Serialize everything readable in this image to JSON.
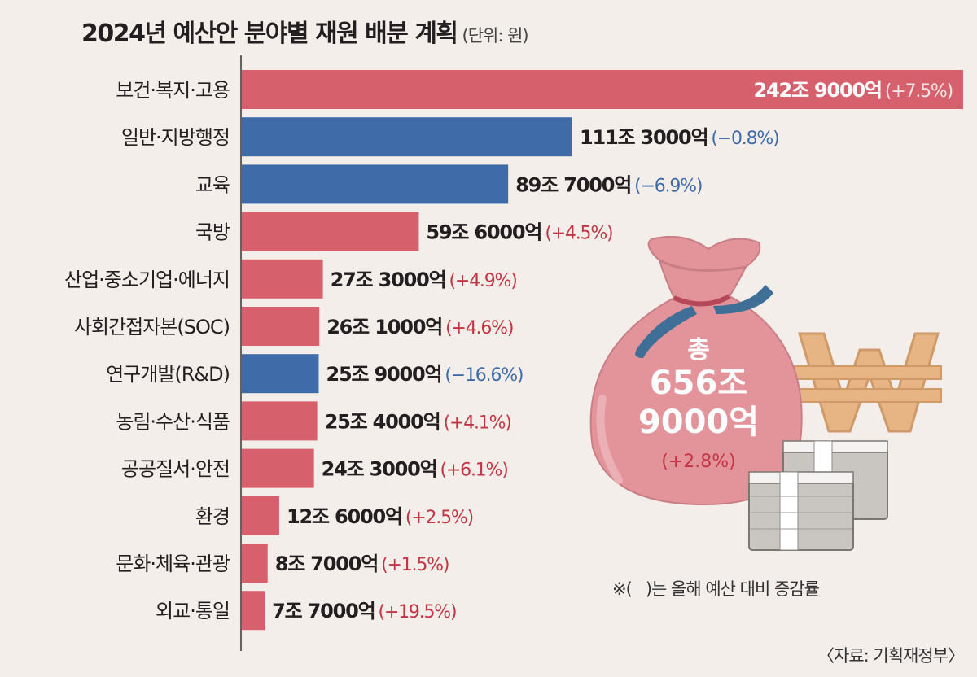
{
  "title": "2024년 예산안 분야별 재원 배분 계획",
  "unit": "(단위: 원)",
  "note": "※(   )는 올해 예산 대비 증감률",
  "source": "〈자료: 기획재정부〉",
  "total": {
    "label": "총",
    "line1": "656조",
    "line2": "9000억",
    "change": "(+2.8%)"
  },
  "colors": {
    "positive": "#d7606d",
    "negative": "#3f6ca8",
    "positive_text": "#c43544",
    "negative_text": "#3f6ca8",
    "top_value_text": "#ffffff"
  },
  "chart_data": {
    "type": "bar",
    "orientation": "horizontal",
    "title": "2024년 예산안 분야별 재원 배분 계획",
    "unit": "원",
    "categories": [
      "보건·복지·고용",
      "일반·지방행정",
      "교육",
      "국방",
      "산업·중소기업·에너지",
      "사회간접자본(SOC)",
      "연구개발(R&D)",
      "농림·수산·식품",
      "공공질서·안전",
      "환경",
      "문화·체육·관광",
      "외교·통일"
    ],
    "values_trillion_won": [
      242.9,
      111.3,
      89.7,
      59.6,
      27.3,
      26.1,
      25.9,
      25.4,
      24.3,
      12.6,
      8.7,
      7.7
    ],
    "value_labels": [
      "242조 9000억",
      "111조 3000억",
      "89조 7000억",
      "59조 6000억",
      "27조 3000억",
      "26조 1000억",
      "25조 9000억",
      "25조 4000억",
      "24조 3000억",
      "12조 6000억",
      "8조 7000억",
      "7조 7000억"
    ],
    "change_percent": [
      7.5,
      -0.8,
      -6.9,
      4.5,
      4.9,
      4.6,
      -16.6,
      4.1,
      6.1,
      2.5,
      1.5,
      19.5
    ],
    "change_labels": [
      "(+7.5%)",
      "(−0.8%)",
      "(−6.9%)",
      "(+4.5%)",
      "(+4.9%)",
      "(+4.6%)",
      "(−16.6%)",
      "(+4.1%)",
      "(+6.1%)",
      "(+2.5%)",
      "(+1.5%)",
      "(+19.5%)"
    ],
    "xlim": [
      0,
      242.9
    ],
    "grid": false,
    "legend": "none"
  }
}
